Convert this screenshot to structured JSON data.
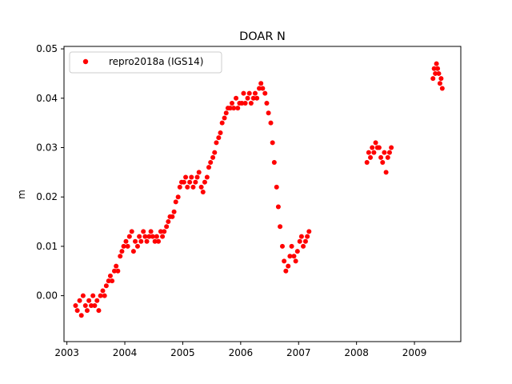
{
  "chart_data": {
    "type": "scatter",
    "title": "DOAR N",
    "xlabel": "",
    "ylabel": "m",
    "xlim": [
      2002.95,
      2009.8
    ],
    "ylim": [
      -0.0093,
      0.0505
    ],
    "xticks": [
      2003,
      2004,
      2005,
      2006,
      2007,
      2008,
      2009
    ],
    "xtick_labels": [
      "2003",
      "2004",
      "2005",
      "2006",
      "2007",
      "2008",
      "2009"
    ],
    "yticks": [
      0.0,
      0.01,
      0.02,
      0.03,
      0.04,
      0.05
    ],
    "ytick_labels": [
      "0.00",
      "0.01",
      "0.02",
      "0.03",
      "0.04",
      "0.05"
    ],
    "grid": false,
    "legend_position": "upper left",
    "series": [
      {
        "name": "repro2018a (IGS14)",
        "color": "#ff0000",
        "marker": "circle",
        "x": [
          2003.15,
          2003.18,
          2003.22,
          2003.25,
          2003.28,
          2003.32,
          2003.35,
          2003.38,
          2003.42,
          2003.45,
          2003.48,
          2003.52,
          2003.55,
          2003.58,
          2003.62,
          2003.65,
          2003.68,
          2003.72,
          2003.75,
          2003.78,
          2003.82,
          2003.85,
          2003.88,
          2003.92,
          2003.95,
          2003.98,
          2004.02,
          2004.05,
          2004.08,
          2004.12,
          2004.15,
          2004.18,
          2004.22,
          2004.25,
          2004.28,
          2004.32,
          2004.35,
          2004.38,
          2004.42,
          2004.45,
          2004.48,
          2004.52,
          2004.55,
          2004.58,
          2004.62,
          2004.65,
          2004.68,
          2004.72,
          2004.75,
          2004.78,
          2004.82,
          2004.85,
          2004.88,
          2004.92,
          2004.95,
          2004.98,
          2005.02,
          2005.05,
          2005.08,
          2005.12,
          2005.15,
          2005.18,
          2005.22,
          2005.25,
          2005.28,
          2005.32,
          2005.35,
          2005.38,
          2005.42,
          2005.45,
          2005.48,
          2005.52,
          2005.55,
          2005.58,
          2005.62,
          2005.65,
          2005.68,
          2005.72,
          2005.75,
          2005.78,
          2005.82,
          2005.85,
          2005.88,
          2005.92,
          2005.95,
          2005.98,
          2006.02,
          2006.05,
          2006.08,
          2006.12,
          2006.15,
          2006.18,
          2006.22,
          2006.25,
          2006.28,
          2006.32,
          2006.35,
          2006.38,
          2006.42,
          2006.45,
          2006.48,
          2006.52,
          2006.55,
          2006.58,
          2006.62,
          2006.65,
          2006.68,
          2006.72,
          2006.75,
          2006.78,
          2006.82,
          2006.85,
          2006.88,
          2006.92,
          2006.95,
          2006.98,
          2007.02,
          2007.05,
          2007.08,
          2007.12,
          2007.15,
          2007.18,
          2008.18,
          2008.21,
          2008.24,
          2008.27,
          2008.3,
          2008.33,
          2008.36,
          2008.39,
          2008.42,
          2008.45,
          2008.48,
          2008.51,
          2008.54,
          2008.57,
          2008.6,
          2009.32,
          2009.34,
          2009.36,
          2009.38,
          2009.4,
          2009.42,
          2009.44,
          2009.46,
          2009.48
        ],
        "y": [
          -0.002,
          -0.003,
          -0.001,
          -0.004,
          0.0,
          -0.002,
          -0.003,
          -0.001,
          -0.002,
          0.0,
          -0.002,
          -0.001,
          -0.003,
          0.0,
          0.001,
          0.0,
          0.002,
          0.003,
          0.004,
          0.003,
          0.005,
          0.006,
          0.005,
          0.008,
          0.009,
          0.01,
          0.011,
          0.01,
          0.012,
          0.013,
          0.009,
          0.011,
          0.01,
          0.012,
          0.011,
          0.013,
          0.012,
          0.011,
          0.012,
          0.013,
          0.012,
          0.011,
          0.012,
          0.011,
          0.013,
          0.012,
          0.013,
          0.014,
          0.015,
          0.016,
          0.016,
          0.017,
          0.019,
          0.02,
          0.022,
          0.023,
          0.023,
          0.024,
          0.022,
          0.023,
          0.024,
          0.022,
          0.023,
          0.024,
          0.025,
          0.022,
          0.021,
          0.023,
          0.024,
          0.026,
          0.027,
          0.028,
          0.029,
          0.031,
          0.032,
          0.033,
          0.035,
          0.036,
          0.037,
          0.038,
          0.038,
          0.039,
          0.038,
          0.04,
          0.038,
          0.039,
          0.039,
          0.041,
          0.039,
          0.04,
          0.041,
          0.039,
          0.04,
          0.041,
          0.04,
          0.042,
          0.043,
          0.042,
          0.041,
          0.039,
          0.037,
          0.035,
          0.031,
          0.027,
          0.022,
          0.018,
          0.014,
          0.01,
          0.007,
          0.005,
          0.006,
          0.008,
          0.01,
          0.008,
          0.007,
          0.009,
          0.011,
          0.012,
          0.01,
          0.011,
          0.012,
          0.013,
          0.027,
          0.029,
          0.028,
          0.03,
          0.029,
          0.031,
          0.03,
          0.03,
          0.028,
          0.027,
          0.029,
          0.025,
          0.028,
          0.029,
          0.03,
          0.044,
          0.046,
          0.045,
          0.047,
          0.046,
          0.045,
          0.043,
          0.044,
          0.042
        ]
      }
    ]
  }
}
